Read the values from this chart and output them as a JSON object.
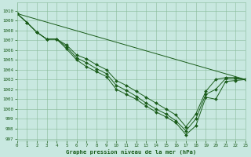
{
  "title": "Graphe pression niveau de la mer (hPa)",
  "background_color": "#c8e8e0",
  "grid_color": "#88bb99",
  "line_color": "#1a5c1a",
  "xlim": [
    0,
    23
  ],
  "ylim": [
    996.8,
    1010.8
  ],
  "xticks": [
    0,
    1,
    2,
    3,
    4,
    5,
    6,
    7,
    8,
    9,
    10,
    11,
    12,
    13,
    14,
    15,
    16,
    17,
    18,
    19,
    20,
    21,
    22,
    23
  ],
  "yticks": [
    997,
    998,
    999,
    1000,
    1001,
    1002,
    1003,
    1004,
    1005,
    1006,
    1007,
    1008,
    1009,
    1010
  ],
  "series": [
    {
      "x": [
        0,
        1,
        2,
        3,
        4,
        5,
        6,
        7,
        8,
        9,
        10,
        11,
        12,
        13,
        14,
        15,
        16,
        17,
        18,
        19,
        20,
        21,
        22,
        23
      ],
      "y": [
        1009.7,
        1008.8,
        1007.8,
        1007.1,
        1007.1,
        1006.1,
        1005.0,
        1004.3,
        1003.8,
        1003.3,
        1002.0,
        1001.5,
        1001.0,
        1000.3,
        999.7,
        999.2,
        998.6,
        997.4,
        998.3,
        1001.2,
        1001.0,
        1002.8,
        1002.9,
        1003.0
      ],
      "marker": true
    },
    {
      "x": [
        0,
        1,
        2,
        3,
        4,
        5,
        6,
        7,
        8,
        9,
        10,
        11,
        12,
        13,
        14,
        15,
        16,
        17,
        18,
        19,
        20,
        21,
        22,
        23
      ],
      "y": [
        1009.7,
        1008.8,
        1007.8,
        1007.1,
        1007.1,
        1006.3,
        1005.2,
        1004.7,
        1004.1,
        1003.6,
        1002.4,
        1001.9,
        1001.3,
        1000.6,
        1000.0,
        999.5,
        998.8,
        997.8,
        999.0,
        1001.5,
        1002.0,
        1003.1,
        1003.1,
        1003.0
      ],
      "marker": true
    },
    {
      "x": [
        0,
        1,
        2,
        3,
        4,
        5,
        6,
        7,
        8,
        9,
        10,
        11,
        12,
        13,
        14,
        15,
        16,
        17,
        18,
        19,
        20,
        21,
        22,
        23
      ],
      "y": [
        1009.7,
        1008.8,
        1007.8,
        1007.1,
        1007.1,
        1006.5,
        1005.5,
        1005.1,
        1004.5,
        1004.0,
        1002.9,
        1002.4,
        1001.8,
        1001.2,
        1000.6,
        1000.0,
        999.4,
        998.2,
        999.5,
        1001.8,
        1003.0,
        1003.2,
        1003.2,
        1003.0
      ],
      "marker": true
    },
    {
      "x": [
        0,
        23
      ],
      "y": [
        1009.7,
        1003.0
      ],
      "marker": false
    }
  ]
}
